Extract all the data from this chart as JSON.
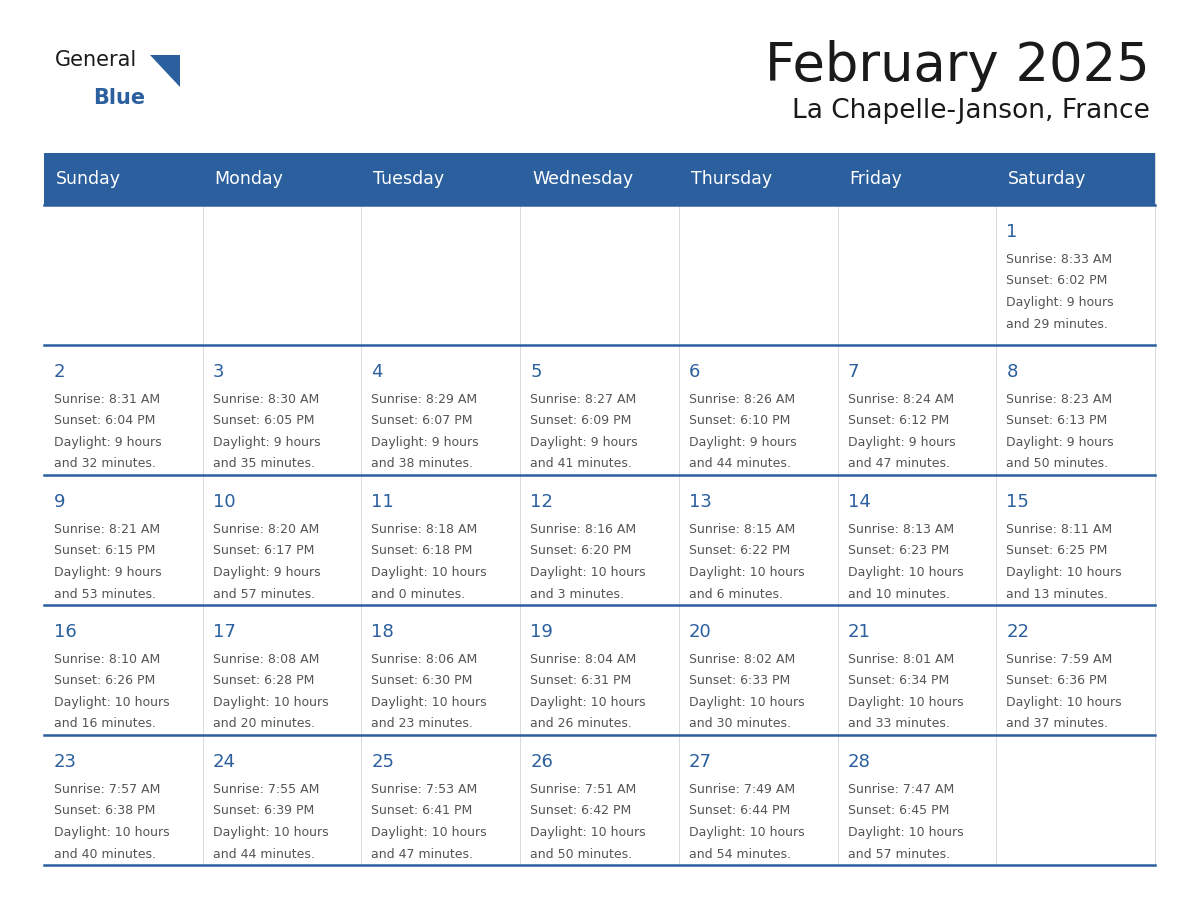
{
  "title": "February 2025",
  "subtitle": "La Chapelle-Janson, France",
  "header_bg": "#2B5F9E",
  "header_text": "#FFFFFF",
  "cell_bg": "#FFFFFF",
  "grid_line_color": "#2B5F9E",
  "day_number_color": "#2B5F9E",
  "text_color": "#555555",
  "days_of_week": [
    "Sunday",
    "Monday",
    "Tuesday",
    "Wednesday",
    "Thursday",
    "Friday",
    "Saturday"
  ],
  "calendar": [
    [
      null,
      null,
      null,
      null,
      null,
      null,
      {
        "day": "1",
        "sunrise": "8:33 AM",
        "sunset": "6:02 PM",
        "daylight_h": "9 hours",
        "daylight_m": "and 29 minutes."
      }
    ],
    [
      {
        "day": "2",
        "sunrise": "8:31 AM",
        "sunset": "6:04 PM",
        "daylight_h": "9 hours",
        "daylight_m": "and 32 minutes."
      },
      {
        "day": "3",
        "sunrise": "8:30 AM",
        "sunset": "6:05 PM",
        "daylight_h": "9 hours",
        "daylight_m": "and 35 minutes."
      },
      {
        "day": "4",
        "sunrise": "8:29 AM",
        "sunset": "6:07 PM",
        "daylight_h": "9 hours",
        "daylight_m": "and 38 minutes."
      },
      {
        "day": "5",
        "sunrise": "8:27 AM",
        "sunset": "6:09 PM",
        "daylight_h": "9 hours",
        "daylight_m": "and 41 minutes."
      },
      {
        "day": "6",
        "sunrise": "8:26 AM",
        "sunset": "6:10 PM",
        "daylight_h": "9 hours",
        "daylight_m": "and 44 minutes."
      },
      {
        "day": "7",
        "sunrise": "8:24 AM",
        "sunset": "6:12 PM",
        "daylight_h": "9 hours",
        "daylight_m": "and 47 minutes."
      },
      {
        "day": "8",
        "sunrise": "8:23 AM",
        "sunset": "6:13 PM",
        "daylight_h": "9 hours",
        "daylight_m": "and 50 minutes."
      }
    ],
    [
      {
        "day": "9",
        "sunrise": "8:21 AM",
        "sunset": "6:15 PM",
        "daylight_h": "9 hours",
        "daylight_m": "and 53 minutes."
      },
      {
        "day": "10",
        "sunrise": "8:20 AM",
        "sunset": "6:17 PM",
        "daylight_h": "9 hours",
        "daylight_m": "and 57 minutes."
      },
      {
        "day": "11",
        "sunrise": "8:18 AM",
        "sunset": "6:18 PM",
        "daylight_h": "10 hours",
        "daylight_m": "and 0 minutes."
      },
      {
        "day": "12",
        "sunrise": "8:16 AM",
        "sunset": "6:20 PM",
        "daylight_h": "10 hours",
        "daylight_m": "and 3 minutes."
      },
      {
        "day": "13",
        "sunrise": "8:15 AM",
        "sunset": "6:22 PM",
        "daylight_h": "10 hours",
        "daylight_m": "and 6 minutes."
      },
      {
        "day": "14",
        "sunrise": "8:13 AM",
        "sunset": "6:23 PM",
        "daylight_h": "10 hours",
        "daylight_m": "and 10 minutes."
      },
      {
        "day": "15",
        "sunrise": "8:11 AM",
        "sunset": "6:25 PM",
        "daylight_h": "10 hours",
        "daylight_m": "and 13 minutes."
      }
    ],
    [
      {
        "day": "16",
        "sunrise": "8:10 AM",
        "sunset": "6:26 PM",
        "daylight_h": "10 hours",
        "daylight_m": "and 16 minutes."
      },
      {
        "day": "17",
        "sunrise": "8:08 AM",
        "sunset": "6:28 PM",
        "daylight_h": "10 hours",
        "daylight_m": "and 20 minutes."
      },
      {
        "day": "18",
        "sunrise": "8:06 AM",
        "sunset": "6:30 PM",
        "daylight_h": "10 hours",
        "daylight_m": "and 23 minutes."
      },
      {
        "day": "19",
        "sunrise": "8:04 AM",
        "sunset": "6:31 PM",
        "daylight_h": "10 hours",
        "daylight_m": "and 26 minutes."
      },
      {
        "day": "20",
        "sunrise": "8:02 AM",
        "sunset": "6:33 PM",
        "daylight_h": "10 hours",
        "daylight_m": "and 30 minutes."
      },
      {
        "day": "21",
        "sunrise": "8:01 AM",
        "sunset": "6:34 PM",
        "daylight_h": "10 hours",
        "daylight_m": "and 33 minutes."
      },
      {
        "day": "22",
        "sunrise": "7:59 AM",
        "sunset": "6:36 PM",
        "daylight_h": "10 hours",
        "daylight_m": "and 37 minutes."
      }
    ],
    [
      {
        "day": "23",
        "sunrise": "7:57 AM",
        "sunset": "6:38 PM",
        "daylight_h": "10 hours",
        "daylight_m": "and 40 minutes."
      },
      {
        "day": "24",
        "sunrise": "7:55 AM",
        "sunset": "6:39 PM",
        "daylight_h": "10 hours",
        "daylight_m": "and 44 minutes."
      },
      {
        "day": "25",
        "sunrise": "7:53 AM",
        "sunset": "6:41 PM",
        "daylight_h": "10 hours",
        "daylight_m": "and 47 minutes."
      },
      {
        "day": "26",
        "sunrise": "7:51 AM",
        "sunset": "6:42 PM",
        "daylight_h": "10 hours",
        "daylight_m": "and 50 minutes."
      },
      {
        "day": "27",
        "sunrise": "7:49 AM",
        "sunset": "6:44 PM",
        "daylight_h": "10 hours",
        "daylight_m": "and 54 minutes."
      },
      {
        "day": "28",
        "sunrise": "7:47 AM",
        "sunset": "6:45 PM",
        "daylight_h": "10 hours",
        "daylight_m": "and 57 minutes."
      },
      null
    ]
  ],
  "logo_general_color": "#1a1a1a",
  "logo_blue_color": "#2B5F9E",
  "logo_triangle_color": "#2B5F9E"
}
